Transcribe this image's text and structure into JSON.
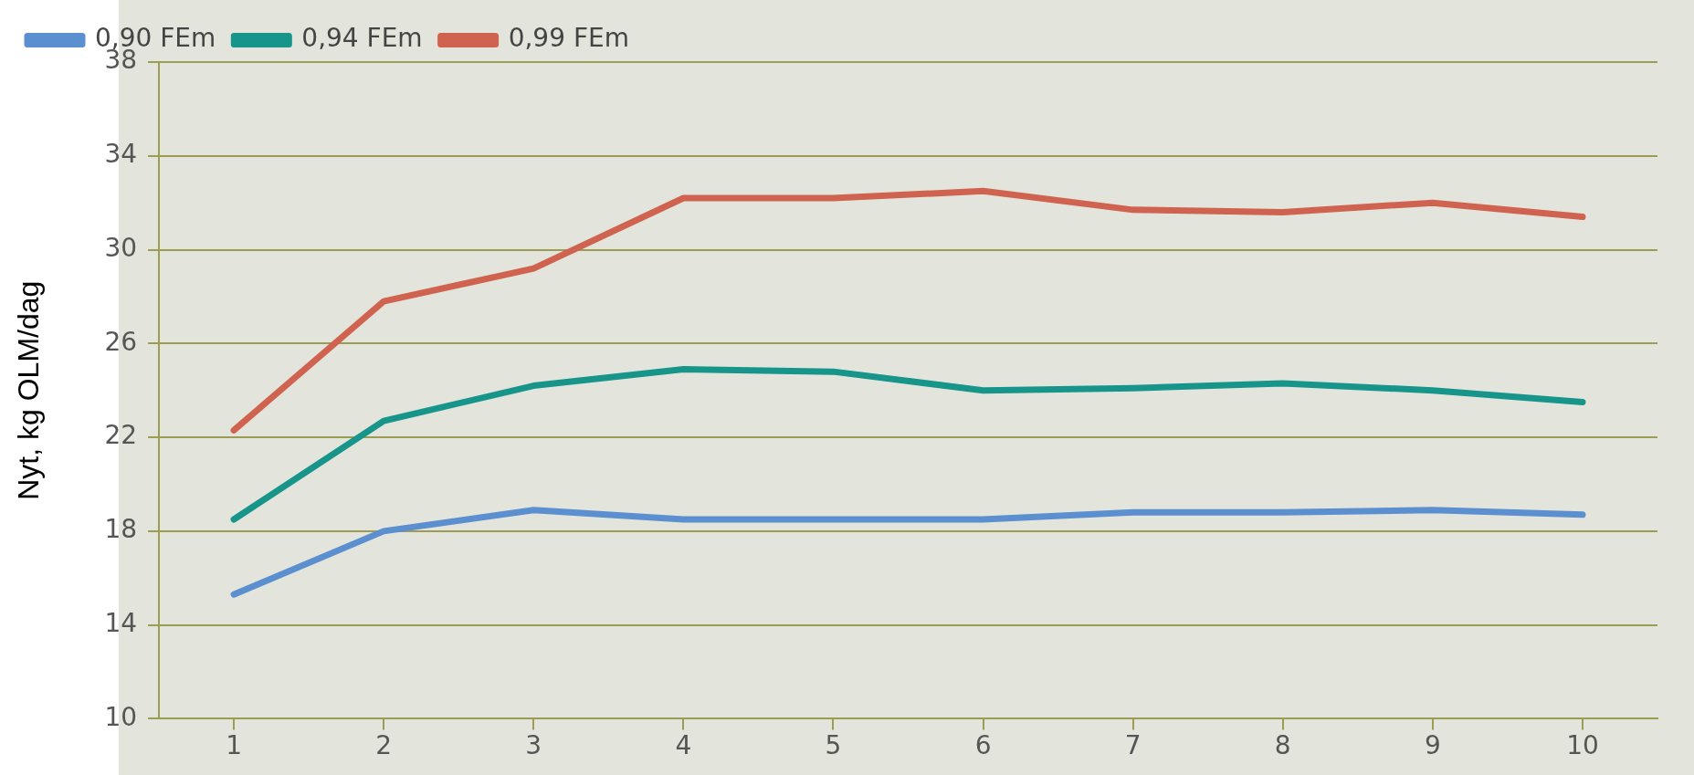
{
  "chart_data": {
    "type": "line",
    "ylabel": "Nyt, kg OLM/dag",
    "categories": [
      "1",
      "2",
      "3",
      "4",
      "5",
      "6",
      "7",
      "8",
      "9",
      "10"
    ],
    "series": [
      {
        "name": "0,90 FEm",
        "color": "#5b8fd0",
        "values": [
          15.3,
          18.0,
          18.9,
          18.5,
          18.5,
          18.5,
          18.8,
          18.8,
          18.9,
          18.7
        ]
      },
      {
        "name": "0,94 FEm",
        "color": "#17958a",
        "values": [
          18.5,
          22.7,
          24.2,
          24.9,
          24.8,
          24.0,
          24.1,
          24.3,
          24.0,
          23.5
        ]
      },
      {
        "name": "0,99 FEm",
        "color": "#d0634f",
        "values": [
          22.3,
          27.8,
          29.2,
          32.2,
          32.2,
          32.5,
          31.7,
          31.6,
          32.0,
          31.4
        ]
      }
    ],
    "ylim": [
      10,
      38
    ],
    "yticks": [
      10,
      14,
      18,
      22,
      26,
      30,
      34,
      38
    ],
    "grid": "y",
    "legend": "top left",
    "marker": "none",
    "line_style": "solid"
  }
}
